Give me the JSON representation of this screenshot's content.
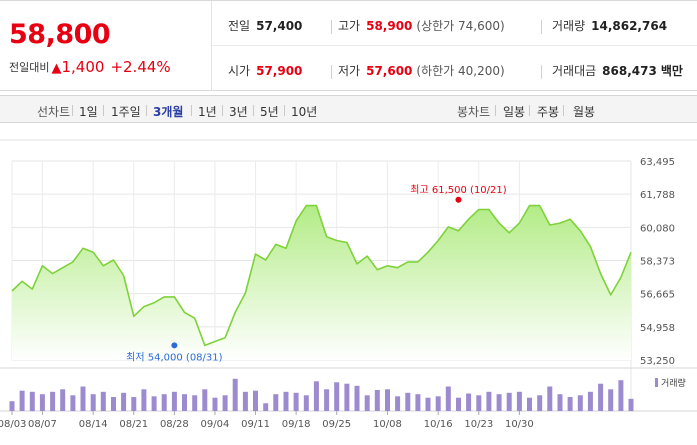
{
  "quote": {
    "price": "58,800",
    "change_label": "전일대비",
    "change_arrow": "▲",
    "change_value": "1,400",
    "change_pct": "+2.44%",
    "prev_close": {
      "label": "전일",
      "value": "57,400"
    },
    "high": {
      "label": "고가",
      "value": "58,900",
      "limit_label": "(상한가 74,600)"
    },
    "volume": {
      "label": "거래량",
      "value": "14,862,764"
    },
    "open": {
      "label": "시가",
      "value": "57,900"
    },
    "low": {
      "label": "저가",
      "value": "57,600",
      "limit_label": "(하한가 40,200)"
    },
    "trade_value": {
      "label": "거래대금",
      "value": "868,473",
      "unit": "백만"
    }
  },
  "toolbar": {
    "line_chart_label": "선차트",
    "periods": [
      "1일",
      "1주일",
      "3개월",
      "1년",
      "3년",
      "5년",
      "10년"
    ],
    "active_period": "3개월",
    "candle_chart_label": "봉차트",
    "candle_periods": [
      "일봉",
      "주봉",
      "월봉"
    ]
  },
  "colors": {
    "up": "#e60012",
    "line": "#7ed23a",
    "fill_top": "#b3ec87",
    "volume_bar": "#9d8bd0",
    "high_marker": "#e60012",
    "low_marker": "#2a6bd6",
    "active_tab": "#2b3fa6"
  },
  "chart_data": [
    {
      "type": "area",
      "y_ticks": [
        "63,495",
        "61,788",
        "60,080",
        "58,373",
        "56,665",
        "54,958",
        "53,250"
      ],
      "ylim": [
        53250,
        63495
      ],
      "x_ticks": [
        "08/03",
        "08/07",
        "08/14",
        "08/21",
        "08/28",
        "09/04",
        "09/11",
        "09/18",
        "09/25",
        "10/08",
        "10/16",
        "10/23",
        "10/30"
      ],
      "x_tick_index": [
        0,
        3,
        8,
        12,
        16,
        20,
        24,
        28,
        32,
        37,
        42,
        46,
        50
      ],
      "grid": true,
      "annotations": {
        "high": {
          "label": "최고 61,500 (10/21)",
          "value": 61500,
          "index": 44
        },
        "low": {
          "label": "최저 54,000 (08/31)",
          "value": 54000,
          "index": 16
        }
      },
      "values": [
        56800,
        57300,
        56900,
        58100,
        57700,
        58000,
        58300,
        59000,
        58800,
        58100,
        58400,
        57600,
        55500,
        56000,
        56200,
        56500,
        56500,
        55700,
        55400,
        54000,
        54200,
        54400,
        55700,
        56700,
        58700,
        58400,
        59200,
        59000,
        60400,
        61200,
        61200,
        59600,
        59400,
        59300,
        58200,
        58600,
        57900,
        58100,
        58000,
        58300,
        58300,
        58800,
        59400,
        60100,
        59900,
        60500,
        61000,
        61000,
        60300,
        59800,
        60300,
        61200,
        61200,
        60200,
        60300,
        60500,
        59900,
        59100,
        57700,
        56600,
        57500,
        58800
      ]
    },
    {
      "type": "bar",
      "legend": "거래량",
      "values": [
        0.28,
        0.58,
        0.55,
        0.48,
        0.55,
        0.62,
        0.45,
        0.7,
        0.48,
        0.55,
        0.4,
        0.52,
        0.4,
        0.62,
        0.42,
        0.48,
        0.55,
        0.48,
        0.45,
        0.62,
        0.38,
        0.45,
        0.92,
        0.55,
        0.58,
        0.22,
        0.48,
        0.55,
        0.52,
        0.45,
        0.85,
        0.62,
        0.82,
        0.78,
        0.72,
        0.45,
        0.6,
        0.62,
        0.42,
        0.52,
        0.48,
        0.38,
        0.42,
        0.7,
        0.38,
        0.5,
        0.45,
        0.55,
        0.48,
        0.52,
        0.55,
        0.38,
        0.45,
        0.7,
        0.48,
        0.4,
        0.45,
        0.55,
        0.78,
        0.62,
        0.88,
        0.35
      ]
    }
  ]
}
